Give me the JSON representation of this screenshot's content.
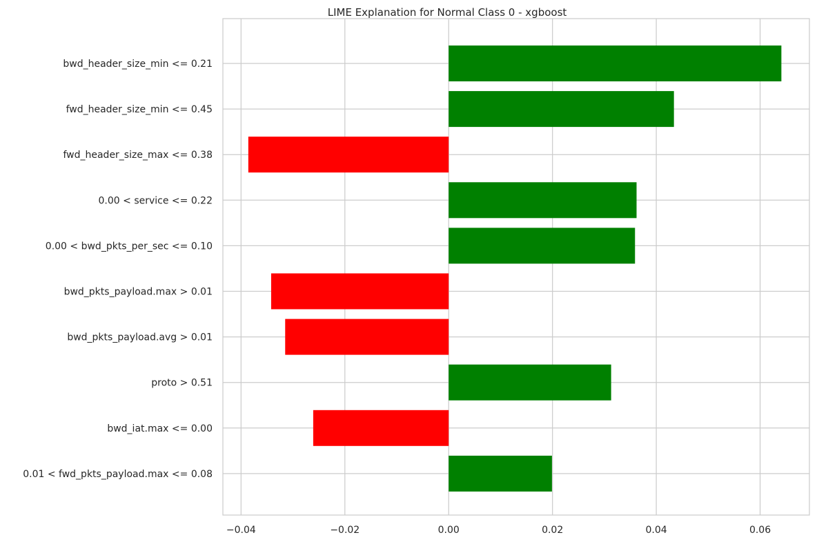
{
  "chart_data": {
    "type": "bar",
    "orientation": "horizontal",
    "title": "LIME Explanation for Normal Class 0 - xgboost",
    "xlabel": "",
    "ylabel": "",
    "xlim": [
      -0.0435,
      0.0695
    ],
    "x_ticks": [
      -0.04,
      -0.02,
      0.0,
      0.02,
      0.04,
      0.06
    ],
    "x_tick_labels": [
      "−0.04",
      "−0.02",
      "0.00",
      "0.02",
      "0.04",
      "0.06"
    ],
    "grid": true,
    "categories": [
      "bwd_header_size_min <= 0.21",
      "fwd_header_size_min <= 0.45",
      "fwd_header_size_max <= 0.38",
      "0.00 < service <= 0.22",
      "0.00 < bwd_pkts_per_sec <= 0.10",
      "bwd_pkts_payload.max > 0.01",
      "bwd_pkts_payload.avg > 0.01",
      "proto > 0.51",
      "bwd_iat.max <= 0.00",
      "0.01 < fwd_pkts_payload.max <= 0.08"
    ],
    "values": [
      0.0641,
      0.0434,
      -0.0386,
      0.0362,
      0.0359,
      -0.0342,
      -0.0315,
      0.0313,
      -0.0261,
      0.0199
    ],
    "colors": {
      "positive": "#008000",
      "negative": "#ff0000",
      "grid": "#cccccc",
      "axes": "#cccccc"
    }
  }
}
